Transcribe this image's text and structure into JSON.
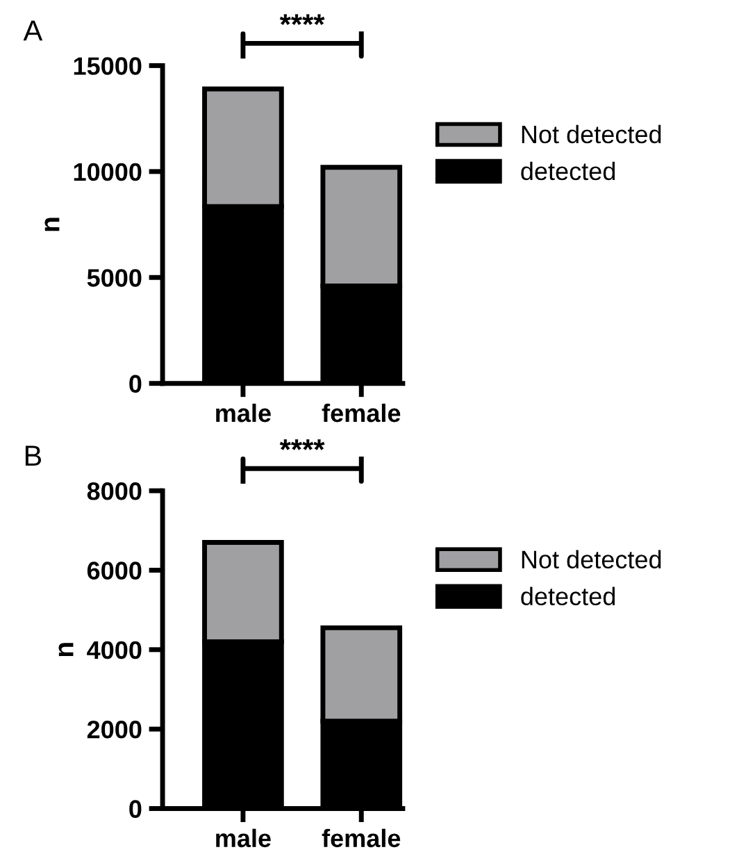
{
  "chart_data": [
    {
      "type": "bar",
      "title": "A",
      "ylabel": "n",
      "categories": [
        "male",
        "female"
      ],
      "stacked": true,
      "series": [
        {
          "name": "detected",
          "color": "#000000",
          "values": [
            8350,
            4600
          ]
        },
        {
          "name": "Not detected",
          "color": "#a0a0a3",
          "values": [
            5550,
            5600
          ]
        }
      ],
      "ylim": [
        0,
        15000
      ],
      "yticks": [
        0,
        5000,
        10000,
        15000
      ],
      "grid": false,
      "legend": "right",
      "annotations": [
        "****"
      ]
    },
    {
      "type": "bar",
      "title": "B",
      "ylabel": "n",
      "categories": [
        "male",
        "female"
      ],
      "stacked": true,
      "series": [
        {
          "name": "detected",
          "color": "#000000",
          "values": [
            4200,
            2200
          ]
        },
        {
          "name": "Not detected",
          "color": "#a0a0a3",
          "values": [
            2500,
            2350
          ]
        }
      ],
      "ylim": [
        0,
        8000
      ],
      "yticks": [
        0,
        2000,
        4000,
        6000,
        8000
      ],
      "grid": false,
      "legend": "right",
      "annotations": [
        "****"
      ]
    }
  ]
}
